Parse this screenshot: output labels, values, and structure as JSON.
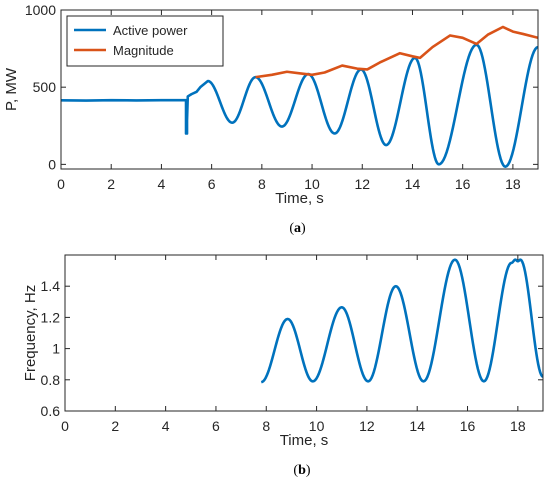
{
  "chart_data": [
    {
      "id": "a",
      "type": "line",
      "caption": "(a)",
      "xlabel": "Time, s",
      "ylabel": "P, MW",
      "xlim": [
        0,
        19
      ],
      "ylim": [
        -30,
        1000
      ],
      "xticks": [
        0,
        2,
        4,
        6,
        8,
        10,
        12,
        14,
        16,
        18
      ],
      "yticks": [
        0,
        500,
        1000
      ],
      "grid": false,
      "legend_position": "top-left",
      "series": [
        {
          "name": "Active power",
          "color": "#0072BD",
          "kind": "oscillation",
          "points": [
            [
              0,
              415
            ],
            [
              1,
              413
            ],
            [
              2,
              416
            ],
            [
              3,
              414
            ],
            [
              4,
              416
            ],
            [
              4.98,
              416
            ],
            [
              4.98,
              200
            ],
            [
              5.02,
              200
            ],
            [
              5.02,
              285
            ],
            [
              5.05,
              440
            ],
            [
              5.2,
              455
            ],
            [
              5.4,
              470
            ],
            [
              5.55,
              500
            ]
          ],
          "extrema": [
            [
              5.85,
              540
            ],
            [
              6.82,
              270
            ],
            [
              7.75,
              565
            ],
            [
              8.8,
              245
            ],
            [
              9.85,
              585
            ],
            [
              10.9,
              200
            ],
            [
              11.95,
              615
            ],
            [
              12.95,
              125
            ],
            [
              14.1,
              690
            ],
            [
              15.05,
              0
            ],
            [
              16.55,
              775
            ],
            [
              17.7,
              -15
            ],
            [
              19.0,
              760
            ]
          ]
        },
        {
          "name": "Magnitude",
          "color": "#D95319",
          "kind": "polyline",
          "points": [
            [
              7.75,
              565
            ],
            [
              8.4,
              580
            ],
            [
              9.0,
              600
            ],
            [
              9.5,
              590
            ],
            [
              10.0,
              580
            ],
            [
              10.5,
              595
            ],
            [
              11.2,
              640
            ],
            [
              11.8,
              620
            ],
            [
              12.2,
              615
            ],
            [
              12.7,
              660
            ],
            [
              13.5,
              720
            ],
            [
              14.0,
              700
            ],
            [
              14.3,
              690
            ],
            [
              14.8,
              760
            ],
            [
              15.5,
              835
            ],
            [
              16.0,
              820
            ],
            [
              16.55,
              780
            ],
            [
              17.0,
              840
            ],
            [
              17.6,
              890
            ],
            [
              18.0,
              860
            ],
            [
              18.4,
              845
            ],
            [
              19.0,
              820
            ]
          ]
        }
      ]
    },
    {
      "id": "b",
      "type": "line",
      "caption": "(b)",
      "xlabel": "Time, s",
      "ylabel": "Frequency, Hz",
      "xlim": [
        0,
        19
      ],
      "ylim": [
        0.6,
        1.6
      ],
      "xticks": [
        0,
        2,
        4,
        6,
        8,
        10,
        12,
        14,
        16,
        18
      ],
      "yticks": [
        0.6,
        0.8,
        1,
        1.2,
        1.4
      ],
      "ytick_labels": [
        "0.6",
        "0.8",
        "1",
        "1.2",
        "1.4"
      ],
      "grid": false,
      "series": [
        {
          "name": "",
          "color": "#0072BD",
          "kind": "oscillation",
          "points": [],
          "extrema": [
            [
              7.8,
              0.785
            ],
            [
              8.85,
              1.19
            ],
            [
              9.85,
              0.79
            ],
            [
              11.0,
              1.265
            ],
            [
              12.05,
              0.79
            ],
            [
              13.15,
              1.4
            ],
            [
              14.25,
              0.79
            ],
            [
              15.5,
              1.57
            ],
            [
              16.65,
              0.79
            ],
            [
              17.75,
              1.55
            ],
            [
              17.9,
              1.57
            ],
            [
              18.0,
              1.56
            ],
            [
              18.1,
              1.57
            ],
            [
              19.0,
              0.82
            ]
          ]
        }
      ]
    }
  ]
}
